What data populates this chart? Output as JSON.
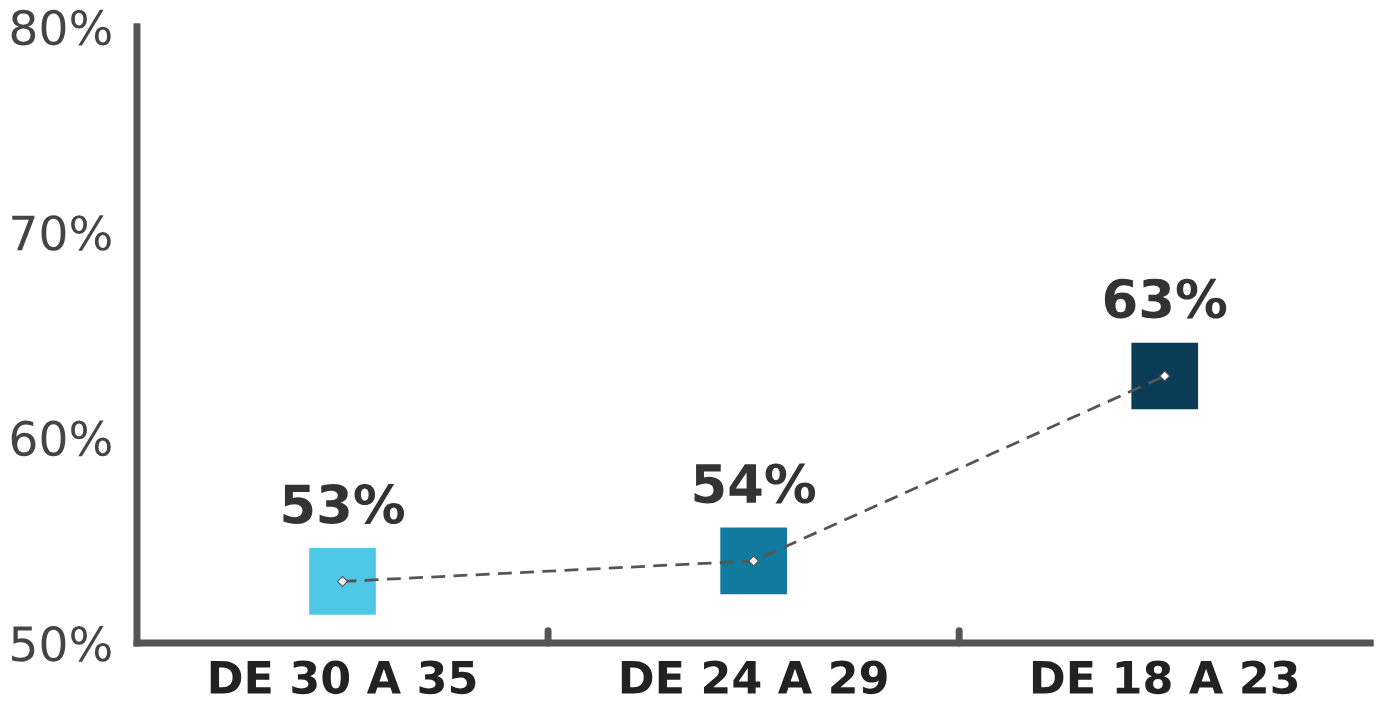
{
  "chart_data": {
    "type": "line",
    "categories": [
      "DE 30 A 35",
      "DE 24 A 29",
      "DE 18 A 23"
    ],
    "series": [
      {
        "color": "#555555",
        "colors": [
          "#4ec8e6",
          "#127a9e",
          "#0b3c55"
        ],
        "values": [
          53,
          54,
          63
        ]
      }
    ],
    "marker": "diamond",
    "line_style": "dashed",
    "value_labels": [
      "53%",
      "54%",
      "63%"
    ],
    "ylim": [
      50,
      80
    ],
    "yticks": [
      {
        "value": 50,
        "label": "50%"
      },
      {
        "value": 60,
        "label": "60%"
      },
      {
        "value": 70,
        "label": "70%"
      },
      {
        "value": 80,
        "label": "80%"
      }
    ],
    "grid": false,
    "legend": false
  }
}
